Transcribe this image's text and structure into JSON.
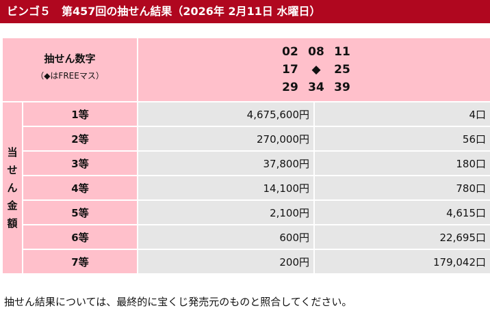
{
  "header": {
    "title": "ビンゴ５　第457回の抽せん結果（2026年 2月11日 水曜日）"
  },
  "numbers": {
    "label": "抽せん数字",
    "sublabel": "（◆はFREEマス）",
    "rows": [
      [
        "02",
        "08",
        "11"
      ],
      [
        "17",
        "◆",
        "25"
      ],
      [
        "29",
        "34",
        "39"
      ]
    ]
  },
  "prizes": {
    "side_label_chars": [
      "当",
      "せ",
      "ん",
      "金",
      "額"
    ],
    "rows": [
      {
        "rank": "1等",
        "amount": "4,675,600円",
        "winners": "4口"
      },
      {
        "rank": "2等",
        "amount": "270,000円",
        "winners": "56口"
      },
      {
        "rank": "3等",
        "amount": "37,800円",
        "winners": "180口"
      },
      {
        "rank": "4等",
        "amount": "14,100円",
        "winners": "780口"
      },
      {
        "rank": "5等",
        "amount": "2,100円",
        "winners": "4,615口"
      },
      {
        "rank": "6等",
        "amount": "600円",
        "winners": "22,695口"
      },
      {
        "rank": "7等",
        "amount": "200円",
        "winners": "179,042口"
      }
    ]
  },
  "footer": {
    "note": "抽せん結果については、最終的に宝くじ発売元のものと照合してください。"
  },
  "colors": {
    "header_bg": "#b0071f",
    "label_bg": "#ffc0cb",
    "value_bg": "#e6e6e6"
  }
}
